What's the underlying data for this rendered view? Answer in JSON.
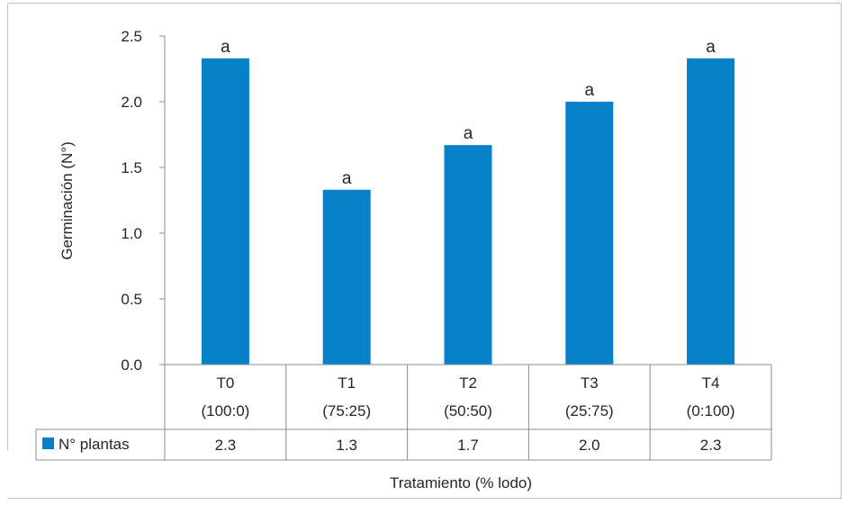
{
  "chart_data": {
    "type": "bar",
    "title": "",
    "ylabel": "Germinación (N°)",
    "xlabel": "Tratamiento (% lodo)",
    "ylim": [
      0,
      2.5
    ],
    "yticks": [
      "0.0",
      "0.5",
      "1.0",
      "1.5",
      "2.0",
      "2.5"
    ],
    "grid": false,
    "categories": [
      {
        "line1": "T0",
        "line2": "(100:0)"
      },
      {
        "line1": "T1",
        "line2": "(75:25)"
      },
      {
        "line1": "T2",
        "line2": "(50:50)"
      },
      {
        "line1": "T3",
        "line2": "(25:75)"
      },
      {
        "line1": "T4",
        "line2": "(0:100)"
      }
    ],
    "series": [
      {
        "name": "N° plantas",
        "color": "#0680C8",
        "values": [
          2.33,
          1.33,
          1.67,
          2.0,
          2.33
        ],
        "table_values": [
          "2.3",
          "1.3",
          "1.7",
          "2.0",
          "2.3"
        ],
        "letters": [
          "a",
          "a",
          "a",
          "a",
          "a"
        ]
      }
    ],
    "legend": "data-table"
  }
}
